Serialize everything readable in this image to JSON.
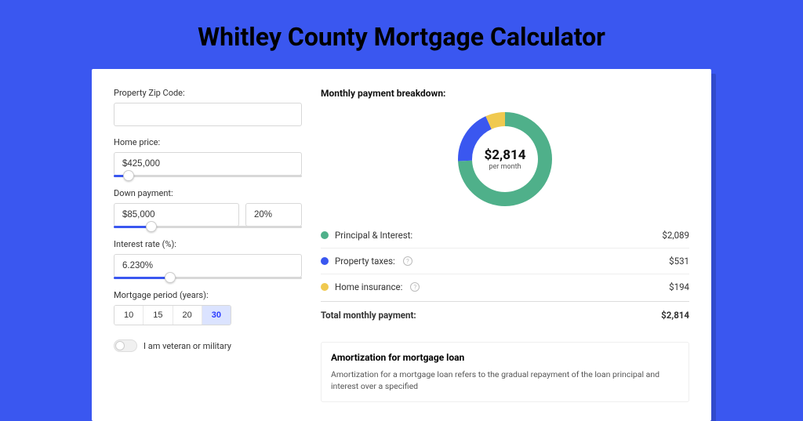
{
  "page": {
    "title": "Whitley County Mortgage Calculator",
    "background_color": "#3a57f0",
    "card_background": "#ffffff"
  },
  "form": {
    "zip": {
      "label": "Property Zip Code:",
      "value": ""
    },
    "price": {
      "label": "Home price:",
      "value": "$425,000",
      "slider_pct": 8
    },
    "down": {
      "label": "Down payment:",
      "value": "$85,000",
      "pct": "20%",
      "slider_pct": 20
    },
    "rate": {
      "label": "Interest rate (%):",
      "value": "6.230%",
      "slider_pct": 30
    },
    "period": {
      "label": "Mortgage period (years):",
      "options": [
        "10",
        "15",
        "20",
        "30"
      ],
      "selected": "30"
    },
    "veteran": {
      "label": "I am veteran or military",
      "checked": false
    }
  },
  "breakdown": {
    "title": "Monthly payment breakdown:",
    "donut": {
      "value": "$2,814",
      "sub": "per month",
      "slices": [
        {
          "key": "pi",
          "pct": 74.2,
          "color": "#4fb08a"
        },
        {
          "key": "tax",
          "pct": 18.9,
          "color": "#3a57f0"
        },
        {
          "key": "ins",
          "pct": 6.9,
          "color": "#f0c94f"
        }
      ],
      "ring_width": 18
    },
    "rows": [
      {
        "dot": "#4fb08a",
        "label": "Principal & Interest:",
        "info": false,
        "value": "$2,089"
      },
      {
        "dot": "#3a57f0",
        "label": "Property taxes:",
        "info": true,
        "value": "$531"
      },
      {
        "dot": "#f0c94f",
        "label": "Home insurance:",
        "info": true,
        "value": "$194"
      }
    ],
    "total": {
      "label": "Total monthly payment:",
      "value": "$2,814"
    }
  },
  "amort": {
    "title": "Amortization for mortgage loan",
    "text": "Amortization for a mortgage loan refers to the gradual repayment of the loan principal and interest over a specified"
  }
}
